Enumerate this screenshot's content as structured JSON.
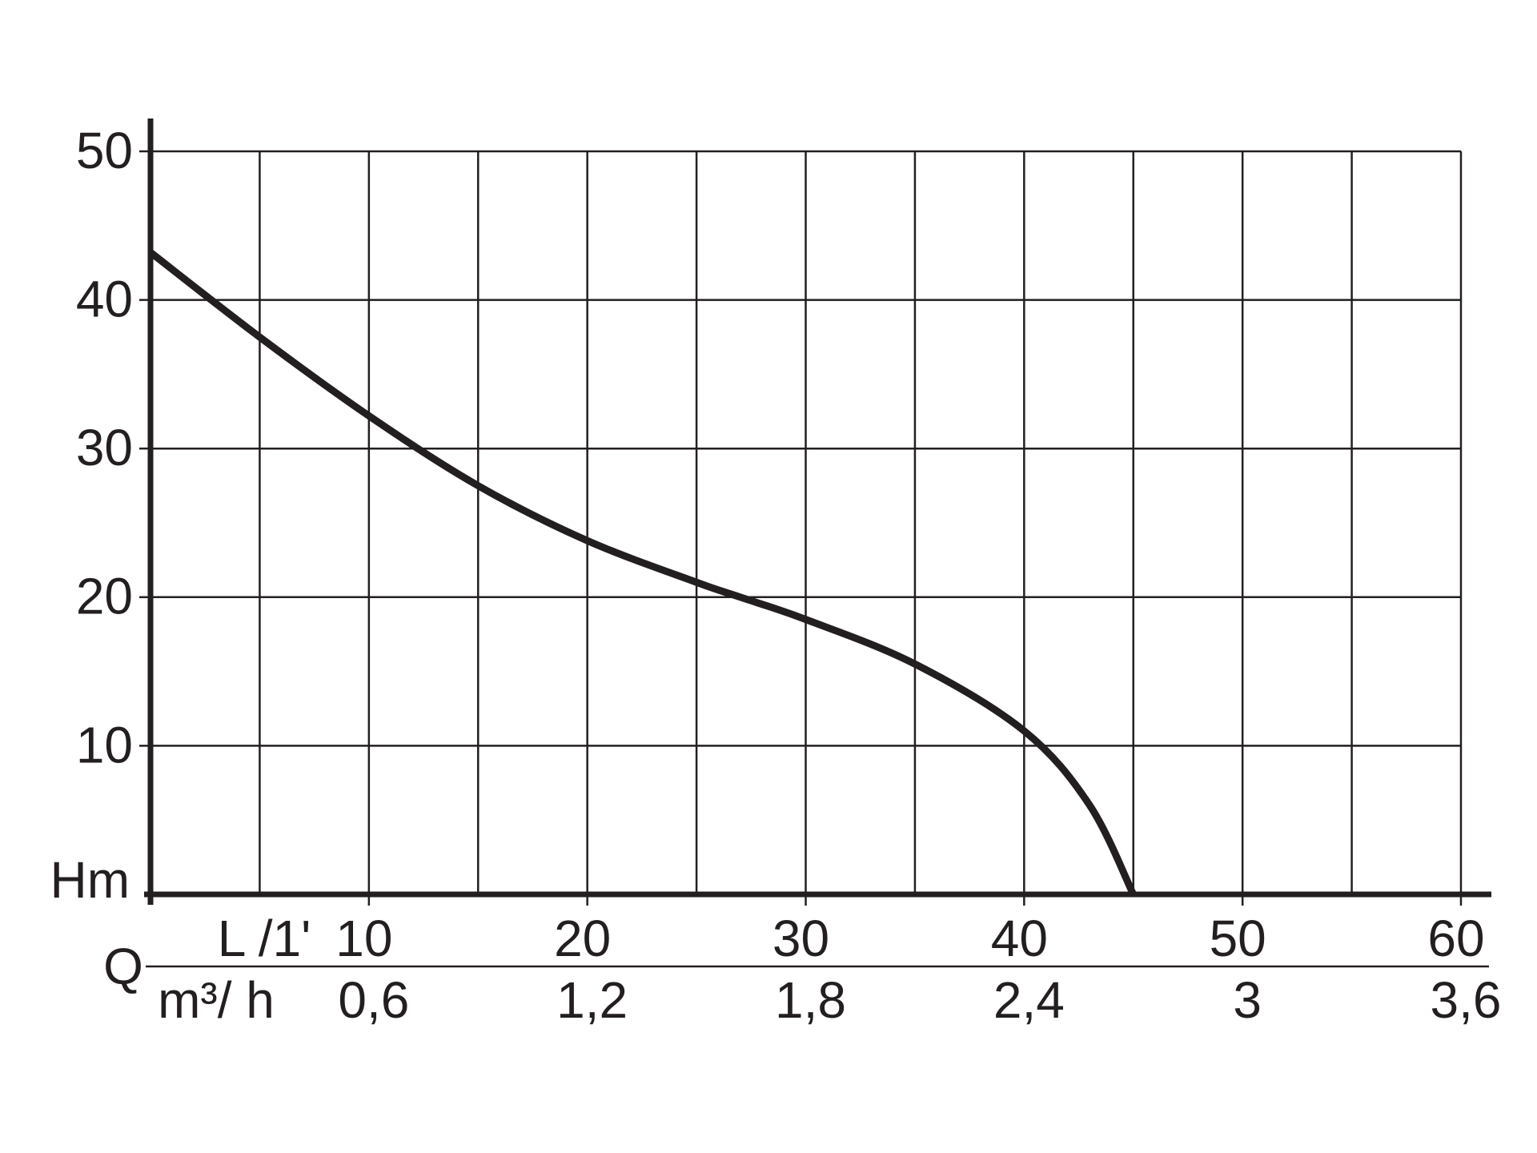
{
  "chart_data": {
    "type": "line",
    "x": [
      0,
      5,
      10,
      15,
      20,
      25,
      27,
      30,
      35,
      40,
      43,
      45
    ],
    "values": [
      43.2,
      37.5,
      32.2,
      27.5,
      23.8,
      21,
      20,
      18.5,
      15.5,
      11,
      6,
      0
    ],
    "color": "#231f20",
    "xlim": [
      0,
      60
    ],
    "xticks": [
      10,
      20,
      30,
      40,
      50,
      60
    ],
    "xminor": [
      5,
      15,
      25,
      35,
      45,
      55
    ],
    "x2lim": [
      0,
      3.6
    ],
    "x2ticks": [
      {
        "value": 0.6,
        "label": "0,6"
      },
      {
        "value": 1.2,
        "label": "1,2"
      },
      {
        "value": 1.8,
        "label": "1,8"
      },
      {
        "value": 2.4,
        "label": "2,4"
      },
      3,
      {
        "value": 3.6,
        "label": "3,6"
      }
    ],
    "ylim": [
      0,
      50
    ],
    "yticks": [
      10,
      20,
      30,
      40,
      50
    ],
    "grid": true,
    "ylabel": "Hm",
    "xlabel": "L /1'",
    "x2label": "m³/ h",
    "xaxis_symbol": "Q"
  }
}
